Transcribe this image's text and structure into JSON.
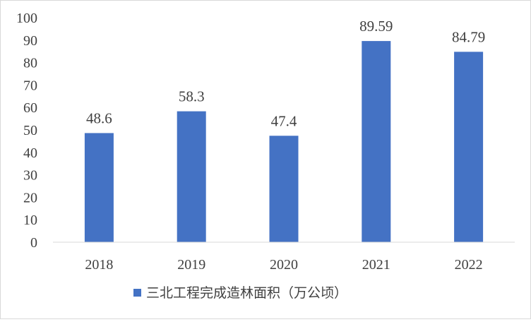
{
  "chart_data": {
    "type": "bar",
    "categories": [
      "2018",
      "2019",
      "2020",
      "2021",
      "2022"
    ],
    "series": [
      {
        "name": "三北工程完成造林面积（万公顷）",
        "values": [
          48.6,
          58.3,
          47.4,
          89.59,
          84.79
        ],
        "labels": [
          "48.6",
          "58.3",
          "47.4",
          "89.59",
          "84.79"
        ],
        "color": "#4472c4"
      }
    ],
    "ylim": [
      0,
      100
    ],
    "yticks": [
      0,
      10,
      20,
      30,
      40,
      50,
      60,
      70,
      80,
      90,
      100
    ],
    "grid": false,
    "legend_position": "bottom"
  }
}
